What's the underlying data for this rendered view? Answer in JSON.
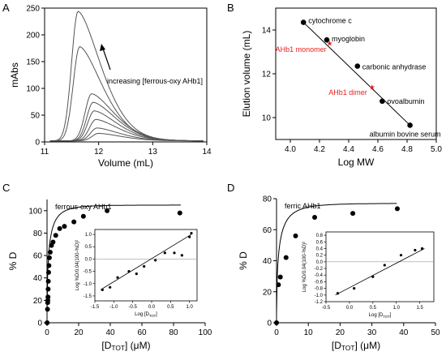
{
  "chart_data": [
    {
      "panel": "A",
      "type": "line",
      "xlabel": "Volume (mL)",
      "ylabel": "mAbs",
      "xlim": [
        11,
        14
      ],
      "ylim": [
        0,
        250
      ],
      "xticks": [
        "11",
        "12",
        "13",
        "14"
      ],
      "yticks": [
        "0",
        "50",
        "100",
        "150",
        "200",
        "250"
      ],
      "annotation": "increasing [ferrous-oxy AHb1]",
      "series": [
        {
          "peak_x": 11.62,
          "peak_y": 242
        },
        {
          "peak_x": 11.65,
          "peak_y": 176
        },
        {
          "peak_x": 11.87,
          "peak_y": 88
        },
        {
          "peak_x": 11.9,
          "peak_y": 72
        },
        {
          "peak_x": 11.92,
          "peak_y": 56
        },
        {
          "peak_x": 11.95,
          "peak_y": 40
        },
        {
          "peak_x": 11.97,
          "peak_y": 24
        },
        {
          "peak_x": 12.0,
          "peak_y": 14
        }
      ]
    },
    {
      "panel": "B",
      "type": "scatter",
      "xlabel": "Log MW",
      "ylabel": "Elution volume (mL)",
      "xlim": [
        3.9,
        5.0
      ],
      "ylim": [
        9,
        15
      ],
      "xticks": [
        "4.0",
        "4.2",
        "4.4",
        "4.6",
        "4.8",
        "5.0"
      ],
      "yticks": [
        "10",
        "12",
        "14"
      ],
      "points": [
        {
          "label": "cytochrome c",
          "x": 4.09,
          "y": 14.35
        },
        {
          "label": "myoglobin",
          "x": 4.25,
          "y": 13.55
        },
        {
          "label": "carbonic anhydrase",
          "x": 4.46,
          "y": 12.35
        },
        {
          "label": "ovoalbumin",
          "x": 4.63,
          "y": 10.75
        },
        {
          "label": "albumin bovine serum",
          "x": 4.82,
          "y": 9.65
        }
      ],
      "markers": [
        {
          "label": "AHb1 monomer",
          "x": 4.27,
          "y": 13.4
        },
        {
          "label": "AHb1 dimer",
          "x": 4.56,
          "y": 11.4
        }
      ]
    },
    {
      "panel": "C",
      "type": "scatter",
      "label": "ferrous-oxy AHb1",
      "xlabel": "[D_TOT] (μM)",
      "ylabel": "% D",
      "xlim": [
        0,
        100
      ],
      "ylim": [
        0,
        110
      ],
      "xticks": [
        "0",
        "20",
        "40",
        "60",
        "80",
        "100"
      ],
      "yticks": [
        "0",
        "20",
        "40",
        "60",
        "80",
        "100"
      ],
      "x": [
        0.1,
        0.3,
        0.4,
        0.5,
        0.6,
        0.7,
        0.8,
        1.0,
        1.2,
        1.5,
        2.0,
        2.8,
        3.8,
        5.5,
        8.0,
        11.0,
        17.0,
        23.0,
        38.0,
        84.0
      ],
      "y": [
        0,
        12,
        18,
        20,
        23,
        30,
        37,
        45,
        51,
        58,
        63,
        69,
        72,
        78,
        84,
        86,
        90,
        95,
        100,
        98
      ],
      "inset": {
        "xlabel": "Log [D_TOT]",
        "ylabel": "Log %D/0.04(100-%D)²",
        "xlim": [
          -1.5,
          1.2
        ],
        "ylim": [
          -1.7,
          1.2
        ],
        "xticks": [
          "-1.5",
          "-1.0",
          "-0.5",
          "0.0",
          "0.5",
          "1.0"
        ],
        "yticks": [
          "-1.5",
          "-1.0",
          "-0.5",
          "0.0",
          "0.5",
          "1.0"
        ],
        "x": [
          -1.3,
          -1.1,
          -0.9,
          -0.6,
          -0.4,
          -0.2,
          0.1,
          0.35,
          0.6,
          0.8,
          1.0,
          1.05
        ],
        "y": [
          -1.25,
          -1.15,
          -0.75,
          -0.5,
          -0.6,
          -0.3,
          -0.05,
          0.25,
          0.25,
          0.15,
          0.9,
          1.05
        ],
        "fit": [
          [
            -1.35,
            -1.25
          ],
          [
            1.05,
            1.0
          ]
        ]
      }
    },
    {
      "panel": "D",
      "type": "scatter",
      "label": "ferric AHb1",
      "xlabel": "[D_TOT] (μM)",
      "ylabel": "% D",
      "xlim": [
        0,
        50
      ],
      "ylim": [
        0,
        80
      ],
      "xticks": [
        "0",
        "10",
        "20",
        "30",
        "40",
        "50"
      ],
      "yticks": [
        "0",
        "20",
        "40",
        "60",
        "80"
      ],
      "x": [
        0,
        0.6,
        1.2,
        3.0,
        6.0,
        12.0,
        24.0,
        38.0
      ],
      "y": [
        0,
        24.5,
        29.5,
        42,
        56,
        68,
        70.5,
        73.5
      ],
      "inset": {
        "xlabel": "Log [D_TOT]",
        "ylabel": "Log %D/0.04(100-%D)²",
        "xlim": [
          -0.5,
          1.8
        ],
        "ylim": [
          -1.2,
          0.9
        ],
        "xticks": [
          "-0.5",
          "0.0",
          "0.5",
          "1.0",
          "1.5"
        ],
        "yticks": [
          "-1.2",
          "-1.0",
          "-0.8",
          "-0.6",
          "-0.4",
          "-0.2",
          "0.0",
          "0.2",
          "0.4",
          "0.6",
          "0.8"
        ],
        "x": [
          -0.25,
          0.1,
          0.5,
          0.75,
          1.1,
          1.4,
          1.55
        ],
        "y": [
          -0.95,
          -0.8,
          -0.45,
          -0.1,
          0.2,
          0.35,
          0.4
        ],
        "fit": [
          [
            -0.3,
            -1.0
          ],
          [
            1.6,
            0.4
          ]
        ]
      }
    }
  ]
}
